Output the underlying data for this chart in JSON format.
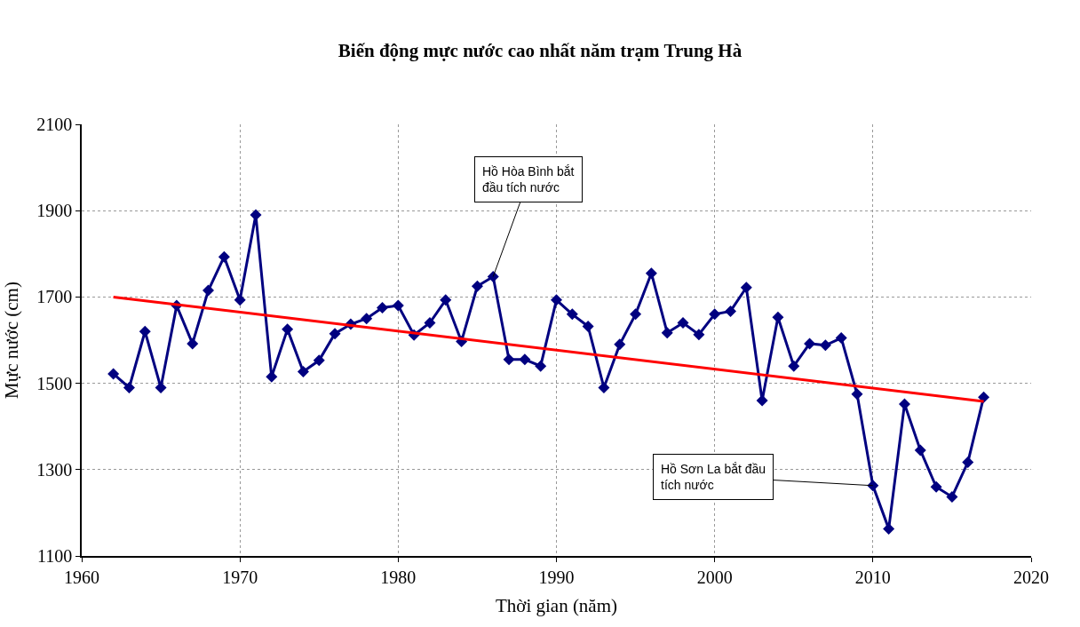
{
  "chart_data": {
    "type": "line",
    "title": "Biến động mực nước cao nhất năm trạm Trung Hà",
    "xlabel": "Thời gian (năm)",
    "ylabel": "Mực nước (cm)",
    "series": [
      {
        "color": "#000080",
        "marker": "diamond",
        "x": [
          1962,
          1963,
          1964,
          1965,
          1966,
          1967,
          1968,
          1969,
          1970,
          1971,
          1972,
          1973,
          1974,
          1975,
          1976,
          1977,
          1978,
          1979,
          1980,
          1981,
          1982,
          1983,
          1984,
          1985,
          1986,
          1987,
          1988,
          1989,
          1990,
          1991,
          1992,
          1993,
          1994,
          1995,
          1996,
          1997,
          1998,
          1999,
          2000,
          2001,
          2002,
          2003,
          2004,
          2005,
          2006,
          2007,
          2008,
          2009,
          2010,
          2011,
          2012,
          2013,
          2014,
          2015,
          2016,
          2017
        ],
        "values": [
          1522,
          1490,
          1620,
          1490,
          1680,
          1592,
          1715,
          1793,
          1693,
          1890,
          1515,
          1625,
          1527,
          1553,
          1615,
          1637,
          1650,
          1675,
          1680,
          1612,
          1640,
          1693,
          1597,
          1725,
          1747,
          1555,
          1555,
          1540,
          1693,
          1660,
          1632,
          1490,
          1590,
          1660,
          1755,
          1617,
          1640,
          1613,
          1660,
          1667,
          1722,
          1460,
          1653,
          1540,
          1592,
          1588,
          1605,
          1475,
          1263,
          1163,
          1452,
          1345,
          1260,
          1237,
          1317,
          1468
        ]
      },
      {
        "color": "#ff0000",
        "marker": "none",
        "x": [
          1962,
          2017
        ],
        "values": [
          1700,
          1458
        ]
      }
    ],
    "xlim": [
      1960,
      2020
    ],
    "xticks": [
      1960,
      1970,
      1980,
      1990,
      2000,
      2010,
      2020
    ],
    "ylim": [
      1100,
      2100
    ],
    "yticks": [
      1100,
      1300,
      1500,
      1700,
      1900,
      2100
    ],
    "grid": true,
    "annotations": [
      {
        "text": "Hồ Hòa Bình bắt\nđầu tích nước",
        "x": 1986,
        "y": 1747
      },
      {
        "text": "Hồ Sơn La bắt đầu\ntích nước",
        "x": 2010,
        "y": 1263
      }
    ]
  }
}
